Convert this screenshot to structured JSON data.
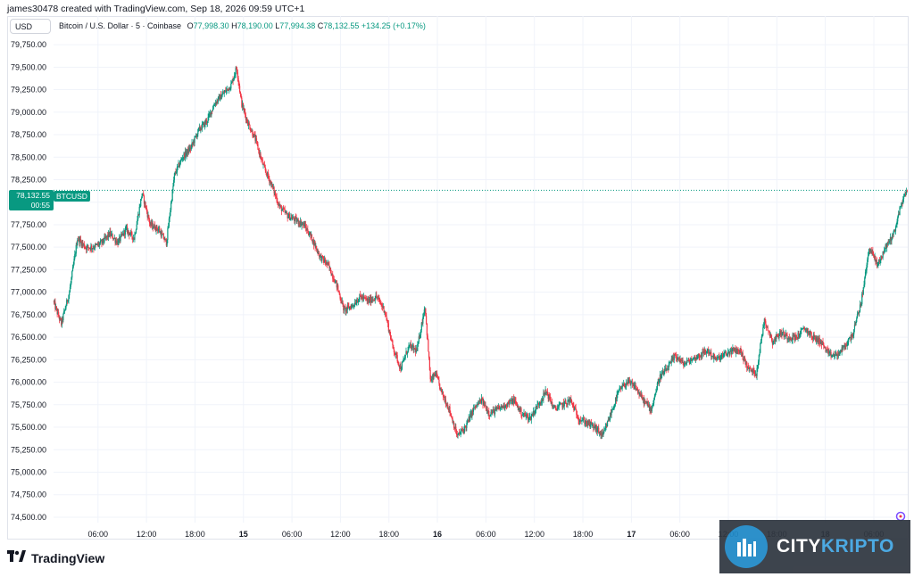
{
  "header": {
    "credit": "james30478 created with TradingView.com, Sep 18, 2026 09:59 UTC+1",
    "currency": "USD"
  },
  "legend": {
    "symbol": "Bitcoin / U.S. Dollar · 5 · Coinbase",
    "o_label": "O",
    "o_value": "77,998.30",
    "h_label": "H",
    "h_value": "78,190.00",
    "l_label": "L",
    "l_value": "77,994.38",
    "c_label": "C",
    "c_value": "78,132.55",
    "change": "+134.25 (+0.17%)"
  },
  "price_tag": {
    "price": "78,132.55",
    "countdown": "00:55",
    "symbol": "BTCUSD"
  },
  "footer": {
    "brand": "TradingView"
  },
  "watermark": {
    "city": "CITY",
    "kripto": "KRIPTO"
  },
  "colors": {
    "up": "#089981",
    "down": "#f23645",
    "grid": "#f0f3fa",
    "axis_text": "#131722"
  },
  "chart_data": {
    "type": "candlestick",
    "interval": "5",
    "y_ticks": [
      74500,
      74750,
      75000,
      75250,
      75500,
      75750,
      76000,
      76250,
      76500,
      76750,
      77000,
      77250,
      77500,
      77750,
      78000,
      78250,
      78500,
      78750,
      79000,
      79250,
      79500,
      79750
    ],
    "y_tick_labels": [
      "74,500.00",
      "74,750.00",
      "75,000.00",
      "75,250.00",
      "75,500.00",
      "75,750.00",
      "76,000.00",
      "76,250.00",
      "76,500.00",
      "76,750.00",
      "77,000.00",
      "77,250.00",
      "77,500.00",
      "77,750.00",
      "78,000.00",
      "78,250.00",
      "78,500.00",
      "78,750.00",
      "79,000.00",
      "79,250.00",
      "79,500.00",
      "79,750.00"
    ],
    "ylim": [
      74450,
      79850
    ],
    "x_ticks": [
      {
        "t": 6,
        "label": "06:00",
        "bold": false
      },
      {
        "t": 12,
        "label": "12:00",
        "bold": false
      },
      {
        "t": 18,
        "label": "18:00",
        "bold": false
      },
      {
        "t": 24,
        "label": "15",
        "bold": true
      },
      {
        "t": 30,
        "label": "06:00",
        "bold": false
      },
      {
        "t": 36,
        "label": "12:00",
        "bold": false
      },
      {
        "t": 42,
        "label": "18:00",
        "bold": false
      },
      {
        "t": 48,
        "label": "16",
        "bold": true
      },
      {
        "t": 54,
        "label": "06:00",
        "bold": false
      },
      {
        "t": 60,
        "label": "12:00",
        "bold": false
      },
      {
        "t": 66,
        "label": "18:00",
        "bold": false
      },
      {
        "t": 72,
        "label": "17",
        "bold": true
      },
      {
        "t": 78,
        "label": "06:00",
        "bold": false
      },
      {
        "t": 84,
        "label": "12:00",
        "bold": false
      },
      {
        "t": 90,
        "label": "18:00",
        "bold": false
      },
      {
        "t": 96,
        "label": "18",
        "bold": true
      },
      {
        "t": 102,
        "label": "06:00",
        "bold": false
      }
    ],
    "xlim": [
      0.5,
      106.2
    ],
    "last_price": 78132.55,
    "path_points": [
      [
        0.5,
        76900
      ],
      [
        1.5,
        76650
      ],
      [
        2.5,
        77000
      ],
      [
        3.5,
        77600
      ],
      [
        4.5,
        77500
      ],
      [
        5.5,
        77500
      ],
      [
        6.5,
        77550
      ],
      [
        7.5,
        77650
      ],
      [
        8.5,
        77550
      ],
      [
        9.5,
        77700
      ],
      [
        10.5,
        77600
      ],
      [
        11.5,
        78100
      ],
      [
        12.5,
        77750
      ],
      [
        13.5,
        77700
      ],
      [
        14.5,
        77550
      ],
      [
        15.5,
        78300
      ],
      [
        16.5,
        78500
      ],
      [
        17.5,
        78600
      ],
      [
        18.5,
        78800
      ],
      [
        19.5,
        78900
      ],
      [
        20.5,
        79100
      ],
      [
        21.5,
        79200
      ],
      [
        22.5,
        79300
      ],
      [
        23.2,
        79500
      ],
      [
        23.8,
        79100
      ],
      [
        24.5,
        78900
      ],
      [
        25.5,
        78700
      ],
      [
        26.5,
        78400
      ],
      [
        27.5,
        78200
      ],
      [
        28.5,
        77950
      ],
      [
        29.5,
        77850
      ],
      [
        30.5,
        77800
      ],
      [
        31.5,
        77750
      ],
      [
        32.5,
        77600
      ],
      [
        33.5,
        77400
      ],
      [
        34.5,
        77300
      ],
      [
        35.5,
        77100
      ],
      [
        36.5,
        76800
      ],
      [
        37.5,
        76850
      ],
      [
        38.5,
        76950
      ],
      [
        39.5,
        76900
      ],
      [
        40.5,
        76950
      ],
      [
        41.5,
        76800
      ],
      [
        42.5,
        76400
      ],
      [
        43.5,
        76150
      ],
      [
        44.5,
        76400
      ],
      [
        45.5,
        76350
      ],
      [
        46.5,
        76850
      ],
      [
        47.2,
        76000
      ],
      [
        47.8,
        76100
      ],
      [
        48.5,
        75900
      ],
      [
        49.5,
        75700
      ],
      [
        50.5,
        75400
      ],
      [
        51.5,
        75500
      ],
      [
        52.5,
        75700
      ],
      [
        53.5,
        75800
      ],
      [
        54.5,
        75650
      ],
      [
        55.5,
        75700
      ],
      [
        56.5,
        75750
      ],
      [
        57.5,
        75800
      ],
      [
        58.5,
        75650
      ],
      [
        59.5,
        75600
      ],
      [
        60.5,
        75750
      ],
      [
        61.5,
        75900
      ],
      [
        62.5,
        75700
      ],
      [
        63.5,
        75750
      ],
      [
        64.5,
        75800
      ],
      [
        65.5,
        75600
      ],
      [
        66.5,
        75550
      ],
      [
        67.5,
        75500
      ],
      [
        68.5,
        75400
      ],
      [
        69.5,
        75650
      ],
      [
        70.5,
        75900
      ],
      [
        71.5,
        76000
      ],
      [
        72.5,
        75950
      ],
      [
        73.5,
        75800
      ],
      [
        74.5,
        75700
      ],
      [
        75.5,
        76050
      ],
      [
        76.5,
        76150
      ],
      [
        77.5,
        76300
      ],
      [
        78.5,
        76200
      ],
      [
        79.5,
        76250
      ],
      [
        80.5,
        76300
      ],
      [
        81.5,
        76350
      ],
      [
        82.5,
        76250
      ],
      [
        83.5,
        76300
      ],
      [
        84.5,
        76350
      ],
      [
        85.5,
        76350
      ],
      [
        86.5,
        76150
      ],
      [
        87.5,
        76100
      ],
      [
        88.5,
        76700
      ],
      [
        89.5,
        76450
      ],
      [
        90.5,
        76550
      ],
      [
        91.5,
        76500
      ],
      [
        92.5,
        76500
      ],
      [
        93.5,
        76600
      ],
      [
        94.5,
        76500
      ],
      [
        95.5,
        76450
      ],
      [
        96.5,
        76300
      ],
      [
        97.5,
        76300
      ],
      [
        98.5,
        76400
      ],
      [
        99.5,
        76550
      ],
      [
        100.5,
        76900
      ],
      [
        101.5,
        77500
      ],
      [
        102.5,
        77300
      ],
      [
        103.5,
        77500
      ],
      [
        104.5,
        77650
      ],
      [
        105.5,
        78000
      ],
      [
        106.2,
        78132.55
      ]
    ]
  }
}
